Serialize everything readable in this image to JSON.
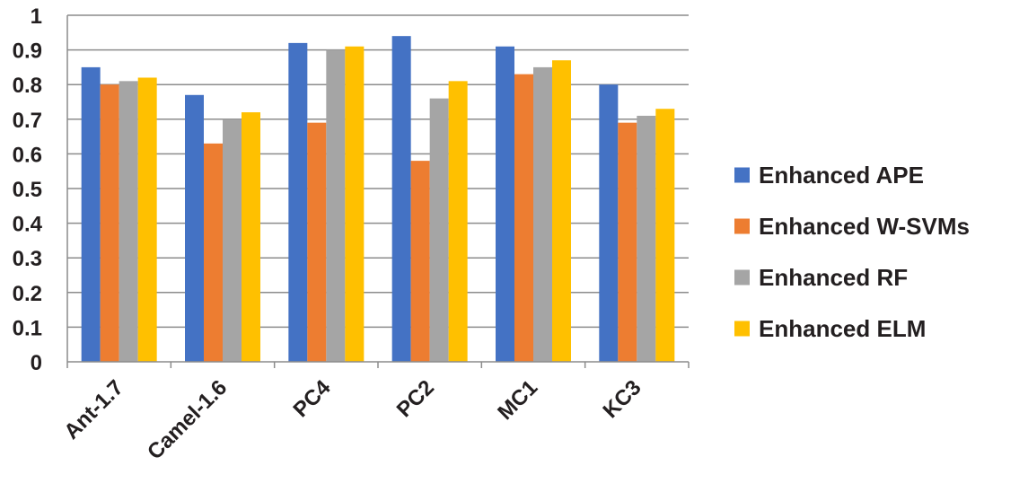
{
  "chart_data": {
    "type": "bar",
    "categories": [
      "Ant-1.7",
      "Camel-1.6",
      "PC4",
      "PC2",
      "MC1",
      "KC3"
    ],
    "series": [
      {
        "name": "Enhanced APE",
        "color": "#4472c4",
        "values": [
          0.85,
          0.77,
          0.92,
          0.94,
          0.91,
          0.8
        ]
      },
      {
        "name": "Enhanced W-SVMs",
        "color": "#ed7d31",
        "values": [
          0.8,
          0.63,
          0.69,
          0.58,
          0.83,
          0.69
        ]
      },
      {
        "name": "Enhanced RF",
        "color": "#a5a5a5",
        "values": [
          0.81,
          0.7,
          0.9,
          0.76,
          0.85,
          0.71
        ]
      },
      {
        "name": "Enhanced ELM",
        "color": "#ffc000",
        "values": [
          0.82,
          0.72,
          0.91,
          0.81,
          0.87,
          0.73
        ]
      }
    ],
    "ylim": [
      0,
      1
    ],
    "yticks": [
      "0",
      "0.1",
      "0.2",
      "0.3",
      "0.4",
      "0.5",
      "0.6",
      "0.7",
      "0.8",
      "0.9",
      "1"
    ],
    "grid": true,
    "legend_position": "right",
    "title": "",
    "xlabel": "",
    "ylabel": ""
  }
}
